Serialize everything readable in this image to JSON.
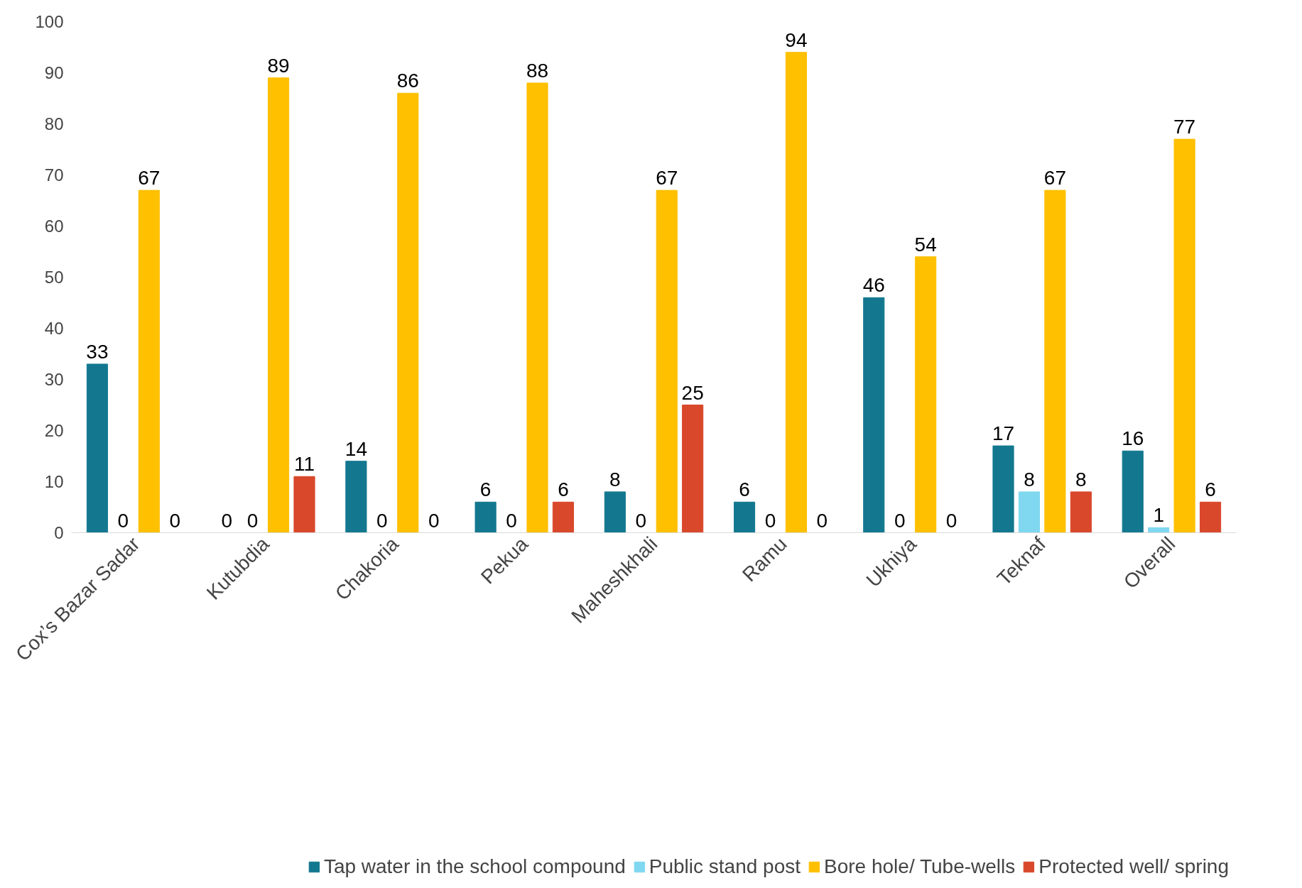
{
  "chart_data": {
    "type": "bar",
    "categories": [
      "Cox’s Bazar Sadar",
      "Kutubdia",
      "Chakoria",
      "Pekua",
      "Maheshkhali",
      "Ramu",
      "Ukhiya",
      "Teknaf",
      "Overall"
    ],
    "series": [
      {
        "name": "Tap water in the school compound",
        "color": "#13788f",
        "values": [
          33,
          0,
          14,
          6,
          8,
          6,
          46,
          17,
          16
        ]
      },
      {
        "name": "Public stand post",
        "color": "#7fd8ef",
        "values": [
          0,
          0,
          0,
          0,
          0,
          0,
          0,
          8,
          1
        ]
      },
      {
        "name": "Bore hole/ Tube-wells",
        "color": "#ffc000",
        "values": [
          67,
          89,
          86,
          88,
          67,
          94,
          54,
          67,
          77
        ]
      },
      {
        "name": "Protected well/ spring",
        "color": "#d9482b",
        "values": [
          0,
          11,
          0,
          6,
          25,
          0,
          0,
          8,
          6
        ]
      }
    ],
    "ylim": [
      0,
      100
    ],
    "yticks": [
      0,
      10,
      20,
      30,
      40,
      50,
      60,
      70,
      80,
      90,
      100
    ],
    "grid": false,
    "legend": "bottom",
    "data_labels": true
  }
}
